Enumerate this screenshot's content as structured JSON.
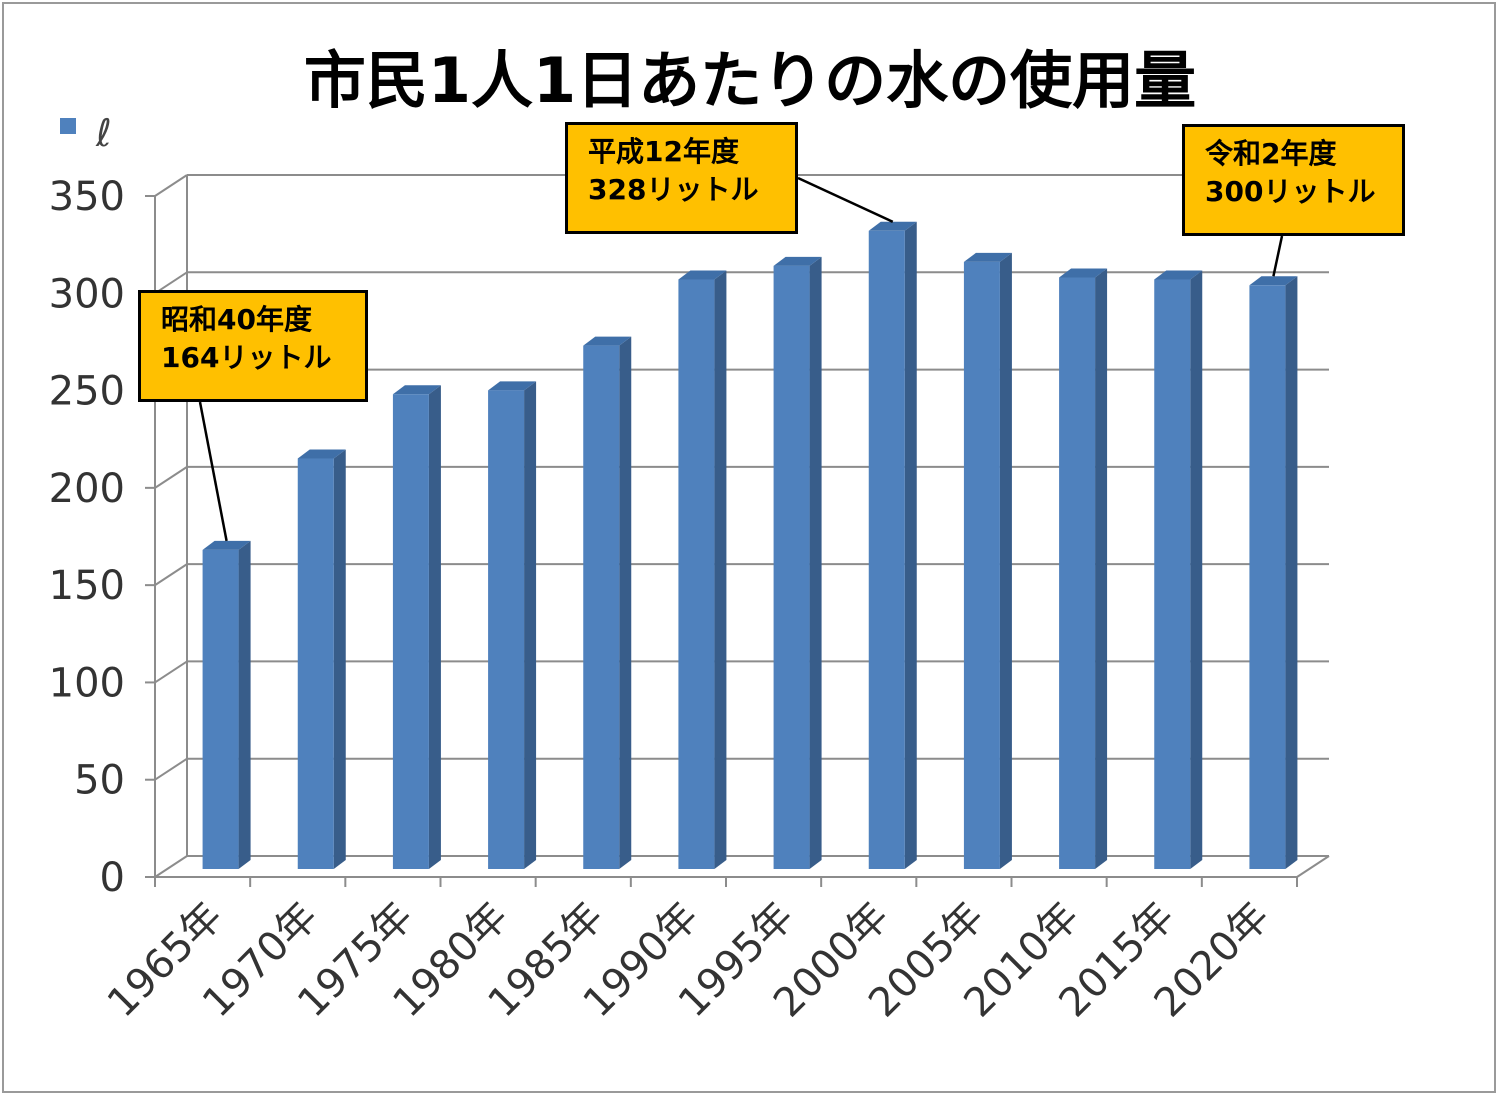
{
  "chart_data": {
    "type": "bar",
    "title": "市民1人1日あたりの水の使用量",
    "legend": {
      "name": "ℓ",
      "position": "top-left",
      "color": "#4f81bd"
    },
    "categories": [
      "1965年",
      "1970年",
      "1975年",
      "1980年",
      "1985年",
      "1990年",
      "1995年",
      "2000年",
      "2005年",
      "2010年",
      "2015年",
      "2020年"
    ],
    "series": [
      {
        "name": "ℓ",
        "values": [
          164,
          211,
          244,
          246,
          269,
          303,
          310,
          328,
          312,
          304,
          303,
          300
        ]
      }
    ],
    "ylim": [
      0,
      350
    ],
    "yticks": [
      "0",
      "50",
      "100",
      "150",
      "200",
      "250",
      "300",
      "350"
    ],
    "grid": true,
    "colors": {
      "bar_front": "#4f81bd",
      "bar_side": "#385d8a",
      "bar_top": "#3f6fa8",
      "callout": "#ffc000"
    },
    "annotations": [
      {
        "line1": "昭和40年度",
        "line2": "164リットル",
        "category": "1965年",
        "value": 164
      },
      {
        "line1": "平成12年度",
        "line2": "328リットル",
        "category": "2000年",
        "value": 328
      },
      {
        "line1": "令和2年度",
        "line2": "300リットル",
        "category": "2020年",
        "value": 300
      }
    ]
  }
}
